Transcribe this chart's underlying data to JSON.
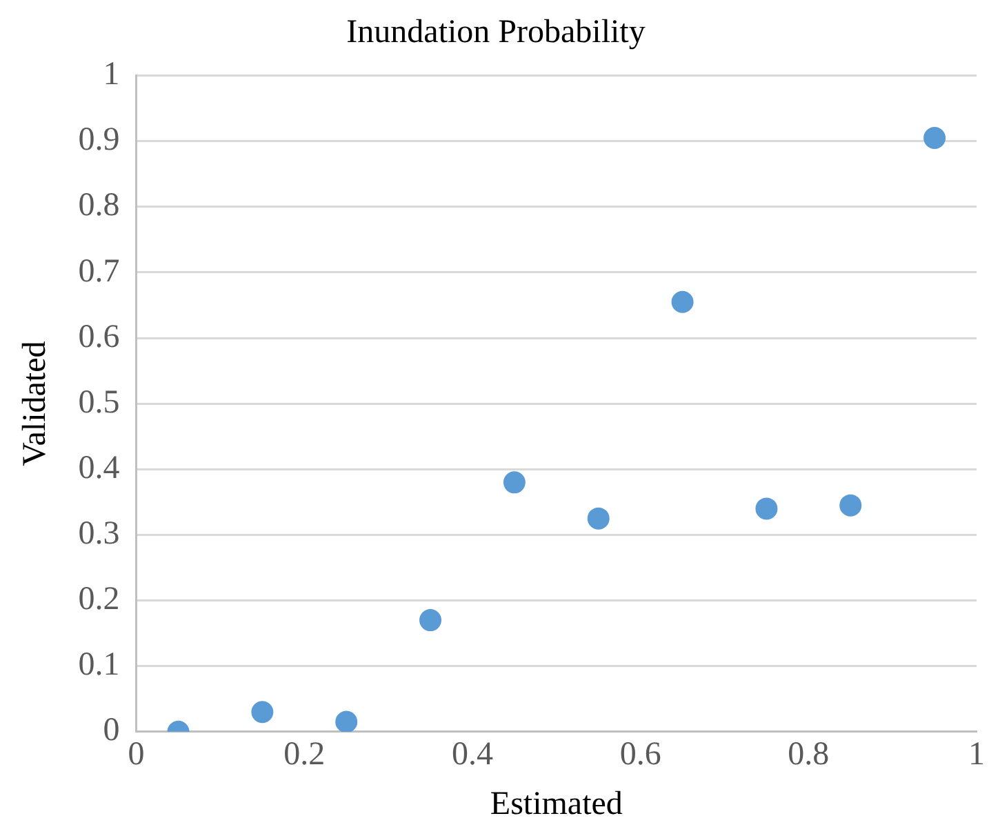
{
  "chart_data": {
    "type": "scatter",
    "title": "Inundation Probability",
    "xlabel": "Estimated",
    "ylabel": "Validated",
    "x": [
      0.05,
      0.15,
      0.25,
      0.35,
      0.45,
      0.55,
      0.65,
      0.75,
      0.85,
      0.95
    ],
    "series": [
      {
        "color": "#5b9bd5",
        "values": [
          0.0,
          0.03,
          0.015,
          0.17,
          0.38,
          0.325,
          0.655,
          0.34,
          0.345,
          0.905
        ]
      }
    ],
    "xlim": [
      0,
      1
    ],
    "xticks": [
      0,
      0.2,
      0.4,
      0.6,
      0.8,
      1
    ],
    "ylim": [
      0,
      1
    ],
    "yticks": [
      0,
      0.1,
      0.2,
      0.3,
      0.4,
      0.5,
      0.6,
      0.7,
      0.8,
      0.9,
      1
    ],
    "grid": "y",
    "legend": false,
    "marker": "circle"
  }
}
